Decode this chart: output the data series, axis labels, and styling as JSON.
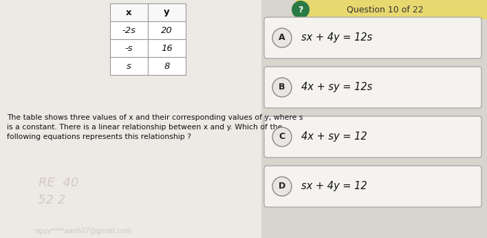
{
  "table_headers": [
    "x",
    "y"
  ],
  "table_rows": [
    [
      "-2s",
      "20"
    ],
    [
      "-s",
      "16"
    ],
    [
      "s",
      "8"
    ]
  ],
  "question_text_line1": "The table shows three values of x and their corresponding values of y, where s",
  "question_text_line2": "is a constant. There is a linear relationship between x and y. Which of the",
  "question_text_line3": "following equations represents this relationship ?",
  "options": [
    {
      "label": "A",
      "text": "sx + 4y = 12s"
    },
    {
      "label": "B",
      "text": "4x + sy = 12s"
    },
    {
      "label": "C",
      "text": "4x + sy = 12"
    },
    {
      "label": "D",
      "text": "sx + 4y = 12"
    }
  ],
  "title_text": "Question 10 of 22",
  "bg_left": "#e8e4df",
  "bg_right": "#dedad4",
  "page_bg": "#f0ede8",
  "table_bg": "#ffffff",
  "table_border": "#999999",
  "option_bg": "#f5f3f0",
  "option_border": "#aaaaaa",
  "circle_bg": "#e8e5e2",
  "circle_border": "#888888",
  "title_circle_color": "#2a7a45",
  "title_bg": "#e8d870",
  "watermark_color": "#c8c0b8",
  "text_color": "#111111",
  "option_text_color": "#111111",
  "font_size_question": 7.8,
  "font_size_options": 10.5,
  "font_size_table": 9.5,
  "font_size_title": 9
}
